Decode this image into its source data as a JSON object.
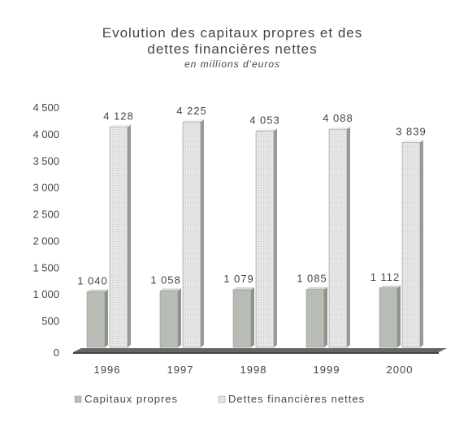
{
  "chart_data": {
    "type": "bar",
    "title_line1": "Evolution des capitaux propres et des",
    "title_line2": "dettes financières nettes",
    "subtitle": "en millions d'euros",
    "categories": [
      "1996",
      "1997",
      "1998",
      "1999",
      "2000"
    ],
    "series": [
      {
        "name": "Capitaux propres",
        "values": [
          1040,
          1058,
          1079,
          1085,
          1112
        ],
        "labels": [
          "1 040",
          "1 058",
          "1 079",
          "1 085",
          "1 112"
        ],
        "color": "#b7bdb5"
      },
      {
        "name": "Dettes financières nettes",
        "values": [
          4128,
          4225,
          4053,
          4088,
          3839
        ],
        "labels": [
          "4 128",
          "4 225",
          "4 053",
          "4 088",
          "3 839"
        ],
        "color": "#e2e2e2"
      }
    ],
    "yticks": [
      "0",
      "500",
      "1 000",
      "1 500",
      "2 000",
      "2 500",
      "3 000",
      "3 500",
      "4 000",
      "4 500"
    ],
    "ytick_values": [
      0,
      500,
      1000,
      1500,
      2000,
      2500,
      3000,
      3500,
      4000,
      4500
    ],
    "ylim": [
      0,
      4500
    ],
    "grid": false,
    "legend_position": "bottom"
  }
}
